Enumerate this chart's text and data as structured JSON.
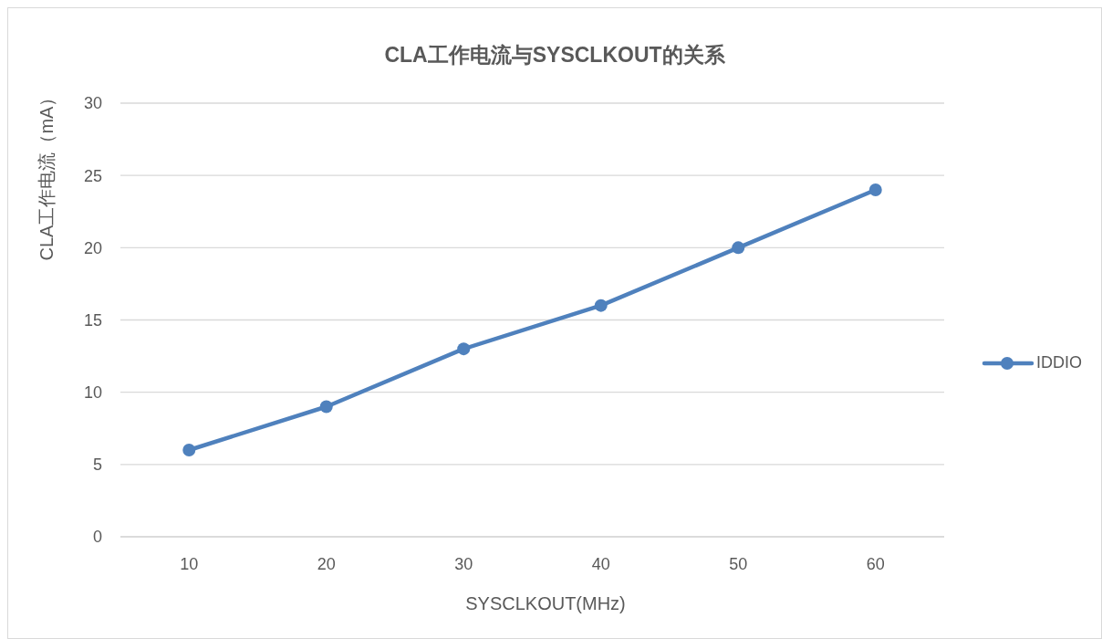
{
  "chart_data": {
    "type": "line",
    "title": "CLA工作电流与SYSCLKOUT的关系",
    "xlabel": "SYSCLKOUT(MHz)",
    "ylabel": "CLA工作电流（mA）",
    "categories": [
      "10",
      "20",
      "30",
      "40",
      "50",
      "60"
    ],
    "series": [
      {
        "name": "IDDIO",
        "color": "#4f81bd",
        "values": [
          6,
          9,
          13,
          16,
          20,
          24
        ]
      }
    ],
    "ylim": [
      0,
      30
    ],
    "yticks": [
      0,
      5,
      10,
      15,
      20,
      25,
      30
    ],
    "grid": "y",
    "legend": "right",
    "marker": "circle",
    "line_style": "solid"
  }
}
